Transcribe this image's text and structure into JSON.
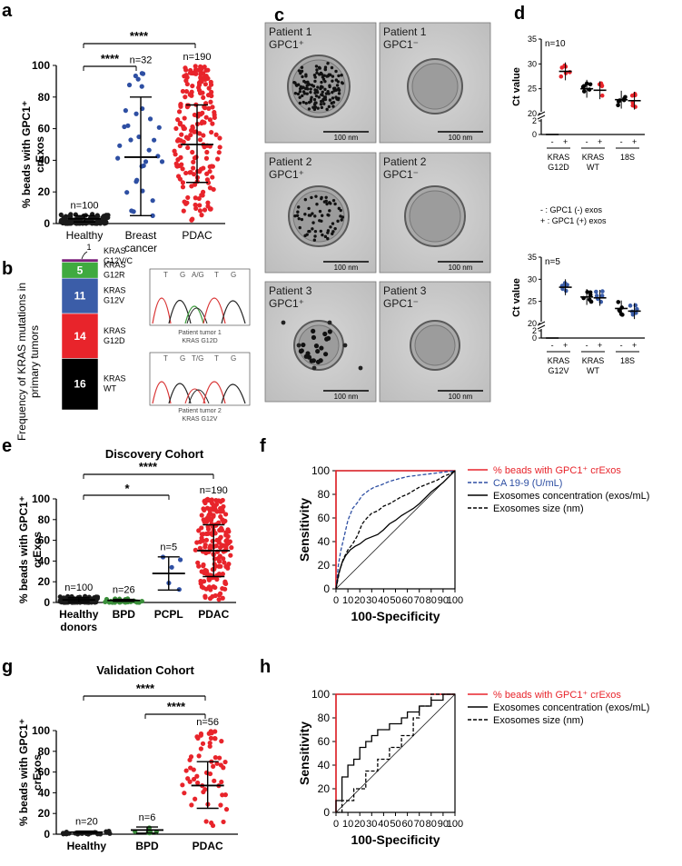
{
  "colors": {
    "healthy": "#1a1a1a",
    "breast": "#2e4fa3",
    "pdac": "#e8242b",
    "bpd": "#3a8f3a",
    "kras_mut": "#e8242b",
    "kras_g12v": "#3b5da8",
    "kras_g12r": "#3faa3f",
    "roc_gpc1": "#e8242b",
    "roc_ca199": "#2e4fa3"
  },
  "panels": {
    "a": {
      "letter": "a",
      "ylabel_line1": "% beads with GPC1⁺",
      "ylabel_line2": "crExos",
      "sig": [
        "****",
        "****"
      ]
    },
    "b": {
      "letter": "b",
      "ylabel_line1": "Frequency of KRAS mutations in",
      "ylabel_line2": "primary tumors",
      "segments": [
        {
          "count": "1",
          "label1": "KRAS",
          "label2": "G12V/C"
        },
        {
          "count": "5",
          "label1": "KRAS",
          "label2": "G12R"
        },
        {
          "count": "11",
          "label1": "KRAS",
          "label2": "G12V"
        },
        {
          "count": "14",
          "label1": "KRAS",
          "label2": "G12D"
        },
        {
          "count": "16",
          "label1": "KRAS",
          "label2": "WT"
        }
      ],
      "chromatograms": [
        {
          "bases": [
            "T",
            "G",
            "A/G",
            "T",
            "G"
          ],
          "caption1": "Patient tumor 1",
          "caption2": "KRAS G12D"
        },
        {
          "bases": [
            "T",
            "G",
            "T/G",
            "T",
            "G"
          ],
          "caption1": "Patient tumor 2",
          "caption2": "KRAS G12V"
        }
      ]
    },
    "c": {
      "letter": "c",
      "images": [
        {
          "line1": "Patient 1",
          "line2": "GPC1⁺",
          "scale": "100 nm"
        },
        {
          "line1": "Patient 1",
          "line2": "GPC1⁻",
          "scale": "100 nm"
        },
        {
          "line1": "Patient 2",
          "line2": "GPC1⁺",
          "scale": "100 nm"
        },
        {
          "line1": "Patient 2",
          "line2": "GPC1⁻",
          "scale": "100 nm"
        },
        {
          "line1": "Patient 3",
          "line2": "GPC1⁺",
          "scale": "100 nm"
        },
        {
          "line1": "Patient 3",
          "line2": "GPC1⁻",
          "scale": "100 nm"
        }
      ]
    },
    "d": {
      "letter": "d",
      "legend_minus": "-  : GPC1 (-) exos",
      "legend_plus": "+  : GPC1 (+) exos"
    },
    "e": {
      "letter": "e",
      "sig": [
        "****",
        "*"
      ]
    },
    "f": {
      "letter": "f"
    },
    "g": {
      "letter": "g",
      "sig": [
        "****",
        "****"
      ]
    },
    "h": {
      "letter": "h"
    }
  },
  "chart_data": [
    {
      "id": "a",
      "type": "scatter",
      "title": "",
      "ylabel": "% beads with GPC1+ crExos",
      "ylim": [
        0,
        100
      ],
      "yticks": [
        0,
        20,
        40,
        60,
        80,
        100
      ],
      "groups": [
        {
          "name": "Healthy",
          "n_label": "n=100",
          "n": 100,
          "mean": 3,
          "sd_low": 1,
          "sd_high": 5,
          "min": 0,
          "max": 6
        },
        {
          "name": "Breast\ncancer",
          "n_label": "n=32",
          "n": 32,
          "mean": 42,
          "sd_low": 5,
          "sd_high": 80,
          "min": 2,
          "max": 98
        },
        {
          "name": "PDAC",
          "n_label": "n=190",
          "n": 190,
          "mean": 50,
          "sd_low": 26,
          "sd_high": 75,
          "min": 2,
          "max": 100
        }
      ]
    },
    {
      "id": "b",
      "type": "bar",
      "title": "",
      "ylabel": "Frequency of KRAS mutations in primary tumors",
      "categories": [
        "KRAS G12V/C",
        "KRAS G12R",
        "KRAS G12V",
        "KRAS G12D",
        "KRAS WT"
      ],
      "values": [
        1,
        5,
        11,
        14,
        16
      ]
    },
    {
      "id": "d_top",
      "type": "scatter",
      "ylabel": "Ct value",
      "n_label": "n=10",
      "yticks_low": [
        0,
        2
      ],
      "yticks_high": [
        20,
        25,
        30,
        35
      ],
      "groups": [
        {
          "gene1": "KRAS",
          "gene2": "G12D",
          "minus_mean": 0,
          "plus_mean": 28.5
        },
        {
          "gene1": "KRAS",
          "gene2": "WT",
          "minus_mean": 25,
          "plus_mean": 24.7
        },
        {
          "gene1": "18S",
          "gene2": "",
          "minus_mean": 22.8,
          "plus_mean": 22.6
        }
      ]
    },
    {
      "id": "d_bottom",
      "type": "scatter",
      "ylabel": "Ct value",
      "n_label": "n=5",
      "yticks_low": [
        0,
        2
      ],
      "yticks_high": [
        20,
        25,
        30,
        35
      ],
      "groups": [
        {
          "gene1": "KRAS",
          "gene2": "G12V",
          "minus_mean": 0,
          "plus_mean": 28.2
        },
        {
          "gene1": "KRAS",
          "gene2": "WT",
          "minus_mean": 26,
          "plus_mean": 25.8
        },
        {
          "gene1": "18S",
          "gene2": "",
          "minus_mean": 23.4,
          "plus_mean": 22.8
        }
      ]
    },
    {
      "id": "e",
      "type": "scatter",
      "title": "Discovery Cohort",
      "ylabel": "% beads with GPC1+ crExos",
      "ylim": [
        0,
        100
      ],
      "yticks": [
        0,
        20,
        40,
        60,
        80,
        100
      ],
      "groups": [
        {
          "name": "Healthy\ndonors",
          "n_label": "n=100",
          "n": 100,
          "mean": 2.5,
          "sd_low": 0.5,
          "sd_high": 4.5,
          "min": 0,
          "max": 6
        },
        {
          "name": "BPD",
          "n_label": "n=26",
          "n": 26,
          "mean": 2,
          "sd_low": 1,
          "sd_high": 3,
          "min": 0,
          "max": 4
        },
        {
          "name": "PCPL",
          "n_label": "n=5",
          "n": 5,
          "mean": 28,
          "sd_low": 12,
          "sd_high": 44,
          "min": 10,
          "max": 45
        },
        {
          "name": "PDAC",
          "n_label": "n=190",
          "n": 190,
          "mean": 50,
          "sd_low": 25,
          "sd_high": 75,
          "min": 2,
          "max": 100
        }
      ]
    },
    {
      "id": "f",
      "type": "line",
      "xlabel": "100-Specificity",
      "ylabel": "Sensitivity",
      "xlim": [
        0,
        100
      ],
      "ylim": [
        0,
        100
      ],
      "ticks": [
        0,
        10,
        20,
        30,
        40,
        50,
        60,
        70,
        80,
        90,
        100
      ],
      "yticks": [
        0,
        20,
        40,
        60,
        80,
        100
      ],
      "series": [
        {
          "name": "% beads with GPC1⁺ crExos",
          "style": "solid",
          "color": "#e8242b",
          "x": [
            0,
            0,
            100
          ],
          "y": [
            0,
            100,
            100
          ]
        },
        {
          "name": "CA 19-9 (U/mL)",
          "style": "dashed",
          "color": "#2e4fa3",
          "x": [
            0,
            2,
            4,
            7,
            10,
            14,
            18,
            22,
            27,
            32,
            38,
            45,
            52,
            60,
            68,
            76,
            84,
            92,
            100
          ],
          "y": [
            0,
            20,
            32,
            45,
            58,
            68,
            73,
            79,
            83,
            86,
            88,
            91,
            93,
            95,
            96,
            97,
            98,
            99,
            100
          ]
        },
        {
          "name": "Exosomes concentration (exos/mL)",
          "style": "solid",
          "color": "#000000",
          "x": [
            0,
            2,
            5,
            8,
            12,
            16,
            20,
            25,
            30,
            35,
            40,
            45,
            50,
            55,
            60,
            65,
            70,
            75,
            80,
            85,
            90,
            95,
            100
          ],
          "y": [
            0,
            12,
            22,
            28,
            33,
            36,
            38,
            42,
            44,
            46,
            50,
            55,
            58,
            62,
            65,
            68,
            72,
            77,
            82,
            86,
            90,
            95,
            100
          ]
        },
        {
          "name": "Exosomes size (nm)",
          "style": "dashed",
          "color": "#000000",
          "x": [
            0,
            3,
            6,
            10,
            14,
            18,
            22,
            26,
            30,
            35,
            40,
            45,
            50,
            55,
            60,
            65,
            70,
            75,
            80,
            85,
            90,
            95,
            100
          ],
          "y": [
            0,
            15,
            25,
            33,
            38,
            45,
            55,
            60,
            64,
            66,
            70,
            72,
            75,
            78,
            80,
            83,
            86,
            88,
            90,
            92,
            95,
            97,
            100
          ]
        }
      ]
    },
    {
      "id": "g",
      "type": "scatter",
      "title": "Validation Cohort",
      "ylabel": "% beads with GPC1+ crExos",
      "ylim": [
        0,
        100
      ],
      "yticks": [
        0,
        20,
        40,
        60,
        80,
        100
      ],
      "groups": [
        {
          "name": "Healthy",
          "n_label": "n=20",
          "n": 20,
          "mean": 2,
          "sd_low": 1,
          "sd_high": 3,
          "min": 0,
          "max": 4
        },
        {
          "name": "BPD",
          "n_label": "n=6",
          "n": 6,
          "mean": 4,
          "sd_low": 1,
          "sd_high": 7,
          "min": 1,
          "max": 8
        },
        {
          "name": "PDAC",
          "n_label": "n=56",
          "n": 56,
          "mean": 47,
          "sd_low": 25,
          "sd_high": 70,
          "min": 5,
          "max": 100
        }
      ]
    },
    {
      "id": "h",
      "type": "line",
      "xlabel": "100-Specificity",
      "ylabel": "Sensitivity",
      "xlim": [
        0,
        100
      ],
      "ylim": [
        0,
        100
      ],
      "ticks": [
        0,
        10,
        20,
        30,
        40,
        50,
        60,
        70,
        80,
        90,
        100
      ],
      "yticks": [
        0,
        20,
        40,
        60,
        80,
        100
      ],
      "series": [
        {
          "name": "% beads with GPC1⁺ crExos",
          "style": "solid",
          "color": "#e8242b",
          "x": [
            0,
            0,
            100
          ],
          "y": [
            0,
            100,
            100
          ]
        },
        {
          "name": "Exosomes concentration (exos/mL)",
          "style": "solid",
          "color": "#000000",
          "x": [
            0,
            0,
            5,
            5,
            10,
            10,
            15,
            15,
            20,
            20,
            25,
            25,
            30,
            30,
            35,
            35,
            45,
            45,
            55,
            55,
            60,
            60,
            70,
            70,
            80,
            80,
            90,
            90,
            100
          ],
          "y": [
            0,
            10,
            10,
            30,
            30,
            40,
            40,
            45,
            45,
            55,
            55,
            60,
            60,
            65,
            65,
            70,
            70,
            75,
            75,
            80,
            80,
            85,
            85,
            90,
            90,
            95,
            95,
            100,
            100
          ]
        },
        {
          "name": "Exosomes size (nm)",
          "style": "dashed",
          "color": "#000000",
          "x": [
            0,
            5,
            5,
            15,
            15,
            25,
            25,
            35,
            35,
            45,
            45,
            55,
            55,
            65,
            65,
            70,
            70,
            80,
            80,
            100
          ],
          "y": [
            0,
            0,
            10,
            10,
            20,
            20,
            35,
            35,
            45,
            45,
            55,
            55,
            65,
            65,
            80,
            80,
            90,
            90,
            100,
            100
          ]
        }
      ]
    }
  ]
}
